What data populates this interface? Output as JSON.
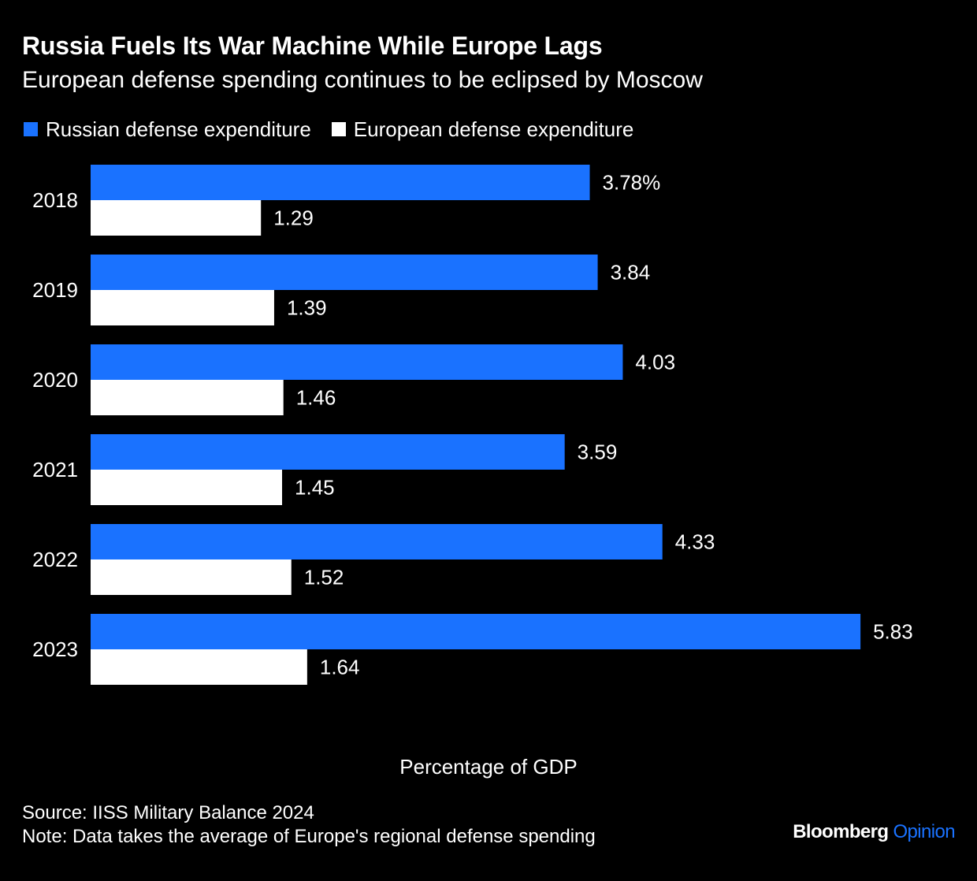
{
  "title": "Russia Fuels Its War Machine While Europe Lags",
  "subtitle": "European defense spending continues to be eclipsed by Moscow",
  "colors": {
    "background": "#000000",
    "russia": "#1a72ff",
    "europe": "#ffffff",
    "text": "#ffffff"
  },
  "chart_data": {
    "type": "bar",
    "orientation": "horizontal",
    "categories": [
      "2018",
      "2019",
      "2020",
      "2021",
      "2022",
      "2023"
    ],
    "series": [
      {
        "name": "Russian defense expenditure",
        "values": [
          3.78,
          3.84,
          4.03,
          3.59,
          4.33,
          5.83
        ],
        "labels": [
          "3.78%",
          "3.84",
          "4.03",
          "3.59",
          "4.33",
          "5.83"
        ],
        "color": "#1a72ff"
      },
      {
        "name": "European defense expenditure",
        "values": [
          1.29,
          1.39,
          1.46,
          1.45,
          1.52,
          1.64
        ],
        "labels": [
          "1.29",
          "1.39",
          "1.46",
          "1.45",
          "1.52",
          "1.64"
        ],
        "color": "#ffffff"
      }
    ],
    "xlabel": "Percentage of GDP",
    "xlim": [
      0,
      7
    ],
    "grid": false,
    "legend": "top-left"
  },
  "footer": {
    "source": "Source: IISS Military Balance 2024",
    "note": "Note: Data takes the average of Europe's regional defense spending"
  },
  "brand": {
    "name": "Bloomberg",
    "section": "Opinion"
  }
}
